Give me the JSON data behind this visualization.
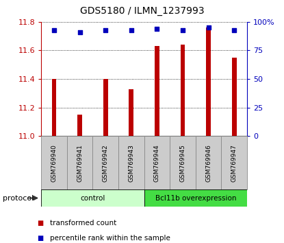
{
  "title": "GDS5180 / ILMN_1237993",
  "samples": [
    "GSM769940",
    "GSM769941",
    "GSM769942",
    "GSM769943",
    "GSM769944",
    "GSM769945",
    "GSM769946",
    "GSM769947"
  ],
  "bar_values": [
    11.4,
    11.15,
    11.4,
    11.33,
    11.63,
    11.64,
    11.76,
    11.55
  ],
  "percentile_values": [
    93,
    91,
    93,
    93,
    94,
    93,
    95,
    93
  ],
  "bar_color": "#bb0000",
  "percentile_color": "#0000bb",
  "ylim_left": [
    11.0,
    11.8
  ],
  "ylim_right": [
    0,
    100
  ],
  "yticks_left": [
    11.0,
    11.2,
    11.4,
    11.6,
    11.8
  ],
  "yticks_right": [
    0,
    25,
    50,
    75,
    100
  ],
  "ytick_labels_right": [
    "0",
    "25",
    "50",
    "75",
    "100%"
  ],
  "protocol_groups": [
    {
      "label": "control",
      "start": 0,
      "end": 4,
      "color": "#ccffcc"
    },
    {
      "label": "Bcl11b overexpression",
      "start": 4,
      "end": 8,
      "color": "#44dd44"
    }
  ],
  "protocol_label": "protocol",
  "legend_items": [
    {
      "label": "transformed count",
      "color": "#bb0000"
    },
    {
      "label": "percentile rank within the sample",
      "color": "#0000bb"
    }
  ],
  "background_color": "#ffffff",
  "plot_bg_color": "#ffffff",
  "grid_color": "#000000",
  "bar_width": 0.18,
  "sample_box_color": "#cccccc",
  "sample_box_edge": "#888888"
}
